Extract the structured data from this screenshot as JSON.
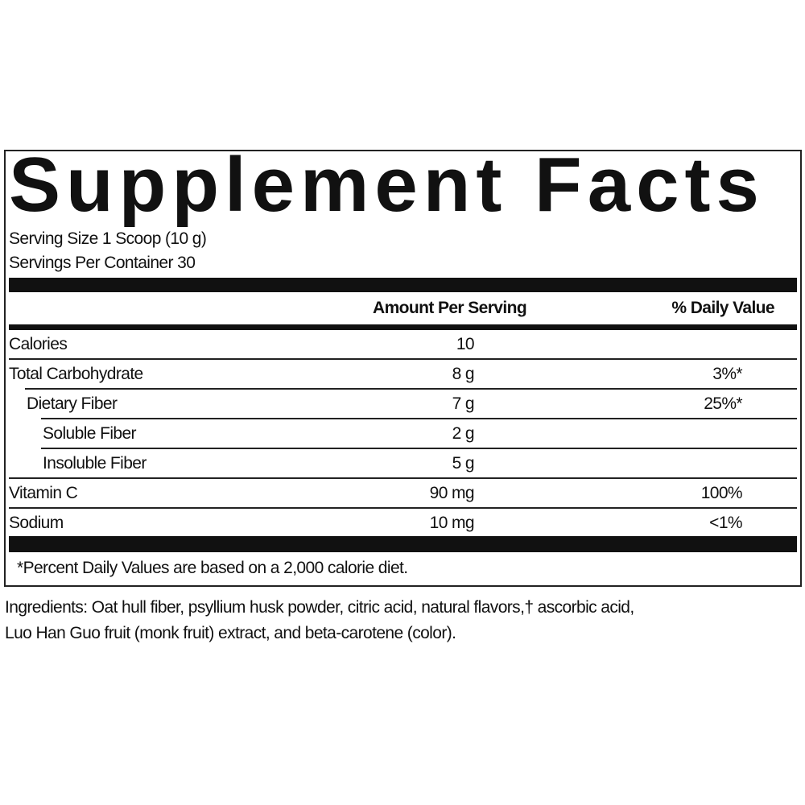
{
  "title": "Supplement Facts",
  "serving_size": "Serving Size 1 Scoop (10 g)",
  "servings_per_container": "Servings Per Container 30",
  "headers": {
    "amount": "Amount Per Serving",
    "daily_value": "% Daily Value"
  },
  "rows": [
    {
      "name": "Calories",
      "amount": "10",
      "dv": ""
    },
    {
      "name": "Total Carbohydrate",
      "amount": "8 g",
      "dv": "3%*"
    },
    {
      "name": "Dietary Fiber",
      "amount": "7 g",
      "dv": "25%*"
    },
    {
      "name": "Soluble Fiber",
      "amount": "2 g",
      "dv": ""
    },
    {
      "name": "Insoluble Fiber",
      "amount": "5 g",
      "dv": ""
    },
    {
      "name": "Vitamin C",
      "amount": "90 mg",
      "dv": "100%"
    },
    {
      "name": "Sodium",
      "amount": "10 mg",
      "dv": "<1%"
    }
  ],
  "footnote": "*Percent Daily Values are based on a 2,000 calorie diet.",
  "ingredients": {
    "line1": "Ingredients: Oat hull fiber, psyllium husk powder, citric acid, natural flavors,† ascorbic acid,",
    "line2": "Luo Han Guo fruit (monk fruit) extract, and beta-carotene (color)."
  }
}
